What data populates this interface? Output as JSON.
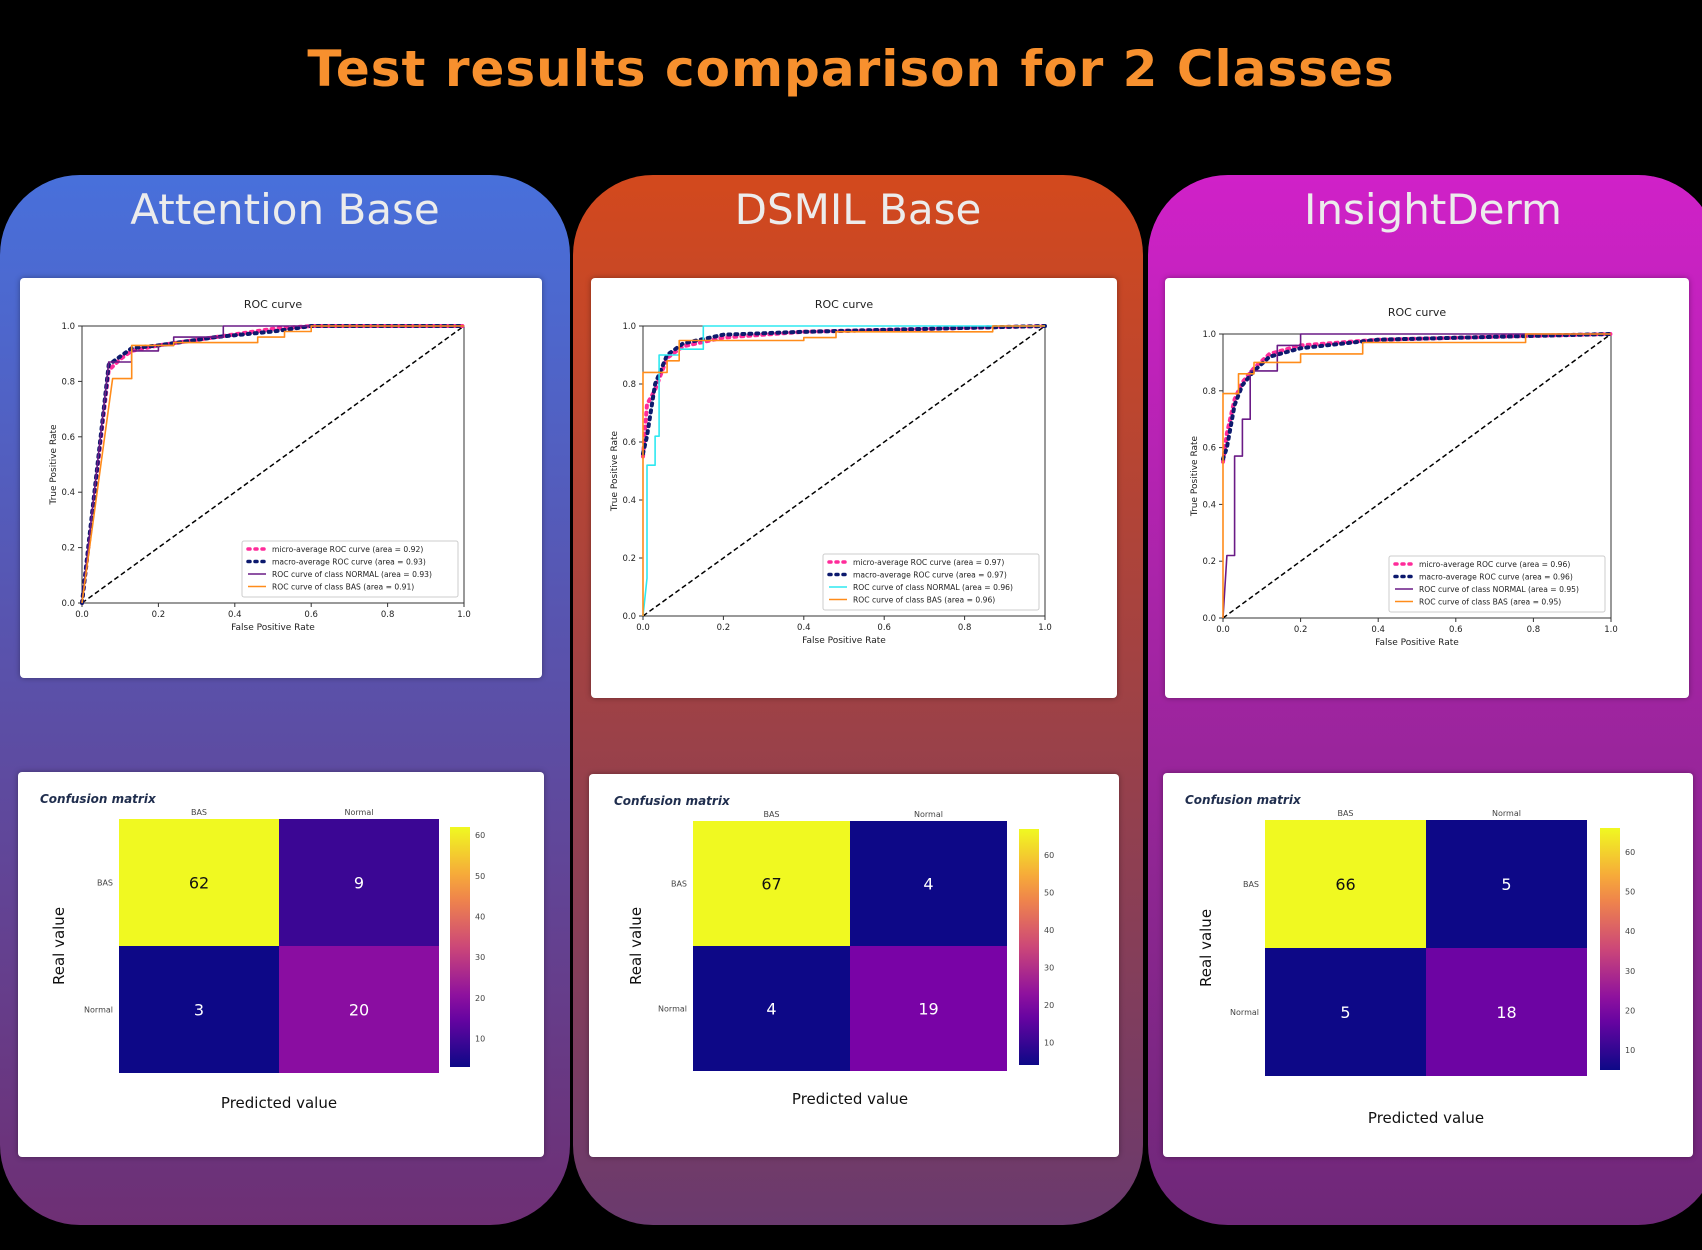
{
  "title": "Test results comparison for 2 Classes",
  "colors": {
    "title": "#F7902E",
    "micro": "#FF2B9A",
    "macro": "#0D1A6E",
    "normal_purple": "#6A1B86",
    "normal_cyan": "#2EE8F0",
    "bas": "#FF8C1A",
    "chance": "#000000"
  },
  "panels": [
    {
      "name": "Attention Base",
      "gradient": [
        "#4870DB",
        "#6E2F74"
      ],
      "roc": {
        "title": "ROC curve",
        "xlabel": "False Positive Rate",
        "ylabel": "True Positive Rate",
        "ticks": [
          "0.0",
          "0.2",
          "0.4",
          "0.6",
          "0.8",
          "1.0"
        ],
        "legend": [
          "micro-average ROC curve (area = 0.92)",
          "macro-average ROC curve (area = 0.93)",
          "ROC curve of class NORMAL     (area = 0.93)",
          "ROC curve of class BAS     (area = 0.91)"
        ]
      },
      "cm": {
        "title": "Confusion matrix",
        "labels": [
          "BAS",
          "Normal"
        ],
        "values": [
          [
            62,
            9
          ],
          [
            3,
            20
          ]
        ],
        "ylabel": "Real value",
        "xlabel": "Predicted value",
        "colorbar_ticks": [
          "60",
          "50",
          "40",
          "30",
          "20",
          "10"
        ]
      }
    },
    {
      "name": "DSMIL Base",
      "gradient": [
        "#D3491D",
        "#6A3A6E"
      ],
      "roc": {
        "title": "ROC curve",
        "xlabel": "False Positive Rate",
        "ylabel": "True Positive Rate",
        "ticks": [
          "0.0",
          "0.2",
          "0.4",
          "0.6",
          "0.8",
          "1.0"
        ],
        "legend": [
          "micro-average ROC curve (area = 0.97)",
          "macro-average ROC curve (area = 0.97)",
          "ROC curve of class NORMAL     (area = 0.96)",
          "ROC curve of class BAS     (area = 0.96)"
        ]
      },
      "cm": {
        "title": "Confusion matrix",
        "labels": [
          "BAS",
          "Normal"
        ],
        "values": [
          [
            67,
            4
          ],
          [
            4,
            19
          ]
        ],
        "ylabel": "Real value",
        "xlabel": "Predicted value",
        "colorbar_ticks": [
          "60",
          "50",
          "40",
          "30",
          "20",
          "10"
        ]
      }
    },
    {
      "name": "InsightDerm",
      "gradient": [
        "#D021C8",
        "#6E2878"
      ],
      "roc": {
        "title": "ROC curve",
        "xlabel": "False Positive Rate",
        "ylabel": "True Positive Rate",
        "ticks": [
          "0.0",
          "0.2",
          "0.4",
          "0.6",
          "0.8",
          "1.0"
        ],
        "legend": [
          "micro-average ROC curve (area = 0.96)",
          "macro-average ROC curve (area = 0.96)",
          "ROC curve of class NORMAL     (area = 0.95)",
          "ROC curve of class BAS     (area = 0.95)"
        ]
      },
      "cm": {
        "title": "Confusion matrix",
        "labels": [
          "BAS",
          "Normal"
        ],
        "values": [
          [
            66,
            5
          ],
          [
            5,
            18
          ]
        ],
        "ylabel": "Real value",
        "xlabel": "Predicted value",
        "colorbar_ticks": [
          "60",
          "50",
          "40",
          "30",
          "20",
          "10"
        ]
      }
    }
  ],
  "chart_data": [
    {
      "type": "line",
      "title": "ROC curve",
      "xlabel": "False Positive Rate",
      "ylabel": "True Positive Rate",
      "xlim": [
        0,
        1
      ],
      "ylim": [
        0,
        1
      ],
      "series": [
        {
          "name": "micro-average ROC curve (area = 0.92)",
          "x": [
            0,
            0.07,
            0.1,
            0.13,
            0.2,
            0.35,
            0.5,
            0.6,
            1.0
          ],
          "y": [
            0,
            0.84,
            0.88,
            0.91,
            0.93,
            0.96,
            0.99,
            1.0,
            1.0
          ]
        },
        {
          "name": "macro-average ROC curve (area = 0.93)",
          "x": [
            0,
            0.07,
            0.1,
            0.13,
            0.2,
            0.35,
            0.5,
            0.6,
            1.0
          ],
          "y": [
            0,
            0.86,
            0.89,
            0.92,
            0.93,
            0.96,
            0.98,
            1.0,
            1.0
          ]
        },
        {
          "name": "ROC curve of class NORMAL     (area = 0.93)",
          "x": [
            0,
            0.07,
            0.07,
            0.13,
            0.13,
            0.2,
            0.2,
            0.24,
            0.24,
            0.37,
            0.37,
            0.57,
            0.57,
            1.0
          ],
          "y": [
            0,
            0.87,
            0.87,
            0.87,
            0.91,
            0.91,
            0.93,
            0.93,
            0.96,
            0.96,
            1.0,
            1.0,
            1.0,
            1.0
          ]
        },
        {
          "name": "ROC curve of class BAS     (area = 0.91)",
          "x": [
            0,
            0.08,
            0.08,
            0.13,
            0.13,
            0.24,
            0.24,
            0.46,
            0.46,
            0.53,
            0.53,
            0.6,
            0.6,
            1.0
          ],
          "y": [
            0,
            0.81,
            0.81,
            0.81,
            0.93,
            0.93,
            0.94,
            0.94,
            0.96,
            0.96,
            0.98,
            0.98,
            1.0,
            1.0
          ]
        }
      ]
    },
    {
      "type": "line",
      "title": "ROC curve",
      "xlabel": "False Positive Rate",
      "ylabel": "True Positive Rate",
      "xlim": [
        0,
        1
      ],
      "ylim": [
        0,
        1
      ],
      "series": [
        {
          "name": "micro-average ROC curve (area = 0.97)",
          "x": [
            0,
            0.01,
            0.03,
            0.06,
            0.1,
            0.2,
            0.4,
            0.7,
            1.0
          ],
          "y": [
            0.55,
            0.73,
            0.78,
            0.89,
            0.93,
            0.96,
            0.98,
            0.99,
            1.0
          ]
        },
        {
          "name": "macro-average ROC curve (area = 0.97)",
          "x": [
            0,
            0.01,
            0.03,
            0.06,
            0.1,
            0.2,
            0.4,
            0.7,
            1.0
          ],
          "y": [
            0.56,
            0.62,
            0.8,
            0.9,
            0.94,
            0.97,
            0.98,
            0.99,
            1.0
          ]
        },
        {
          "name": "ROC curve of class NORMAL     (area = 0.96)",
          "x": [
            0,
            0.01,
            0.01,
            0.03,
            0.03,
            0.04,
            0.04,
            0.09,
            0.09,
            0.15,
            0.15,
            1.0
          ],
          "y": [
            0,
            0.13,
            0.52,
            0.52,
            0.62,
            0.62,
            0.9,
            0.9,
            0.92,
            0.92,
            1.0,
            1.0
          ]
        },
        {
          "name": "ROC curve of class BAS     (area = 0.96)",
          "x": [
            0,
            0,
            0.06,
            0.06,
            0.09,
            0.09,
            0.2,
            0.2,
            0.4,
            0.4,
            0.48,
            0.48,
            0.87,
            0.87,
            1.0
          ],
          "y": [
            0,
            0.84,
            0.84,
            0.88,
            0.88,
            0.95,
            0.95,
            0.95,
            0.95,
            0.96,
            0.96,
            0.98,
            0.98,
            1.0,
            1.0
          ]
        }
      ]
    },
    {
      "type": "line",
      "title": "ROC curve",
      "xlabel": "False Positive Rate",
      "ylabel": "True Positive Rate",
      "xlim": [
        0,
        1
      ],
      "ylim": [
        0,
        1
      ],
      "series": [
        {
          "name": "micro-average ROC curve (area = 0.96)",
          "x": [
            0,
            0.01,
            0.03,
            0.05,
            0.08,
            0.12,
            0.2,
            0.4,
            0.7,
            1.0
          ],
          "y": [
            0.55,
            0.65,
            0.77,
            0.83,
            0.88,
            0.93,
            0.96,
            0.98,
            0.99,
            1.0
          ]
        },
        {
          "name": "macro-average ROC curve (area = 0.96)",
          "x": [
            0,
            0.01,
            0.03,
            0.05,
            0.08,
            0.12,
            0.2,
            0.4,
            0.7,
            1.0
          ],
          "y": [
            0.56,
            0.6,
            0.75,
            0.82,
            0.87,
            0.92,
            0.95,
            0.98,
            0.99,
            1.0
          ]
        },
        {
          "name": "ROC curve of class NORMAL     (area = 0.95)",
          "x": [
            0,
            0.01,
            0.01,
            0.03,
            0.03,
            0.05,
            0.05,
            0.07,
            0.07,
            0.14,
            0.14,
            0.2,
            0.2,
            1.0
          ],
          "y": [
            0,
            0.22,
            0.22,
            0.22,
            0.57,
            0.57,
            0.7,
            0.7,
            0.87,
            0.87,
            0.96,
            0.96,
            1.0,
            1.0
          ]
        },
        {
          "name": "ROC curve of class BAS     (area = 0.95)",
          "x": [
            0,
            0,
            0.04,
            0.04,
            0.08,
            0.08,
            0.2,
            0.2,
            0.36,
            0.36,
            0.78,
            0.78,
            1.0
          ],
          "y": [
            0,
            0.79,
            0.79,
            0.86,
            0.86,
            0.9,
            0.9,
            0.93,
            0.93,
            0.97,
            0.97,
            1.0,
            1.0
          ]
        }
      ]
    },
    {
      "type": "heatmap",
      "title": "Confusion matrix",
      "x": [
        "BAS",
        "Normal"
      ],
      "y": [
        "BAS",
        "Normal"
      ],
      "values": [
        [
          62,
          9
        ],
        [
          3,
          20
        ]
      ],
      "xlabel": "Predicted value",
      "ylabel": "Real value"
    },
    {
      "type": "heatmap",
      "title": "Confusion matrix",
      "x": [
        "BAS",
        "Normal"
      ],
      "y": [
        "BAS",
        "Normal"
      ],
      "values": [
        [
          67,
          4
        ],
        [
          4,
          19
        ]
      ],
      "xlabel": "Predicted value",
      "ylabel": "Real value"
    },
    {
      "type": "heatmap",
      "title": "Confusion matrix",
      "x": [
        "BAS",
        "Normal"
      ],
      "y": [
        "BAS",
        "Normal"
      ],
      "values": [
        [
          66,
          5
        ],
        [
          5,
          18
        ]
      ],
      "xlabel": "Predicted value",
      "ylabel": "Real value"
    }
  ]
}
